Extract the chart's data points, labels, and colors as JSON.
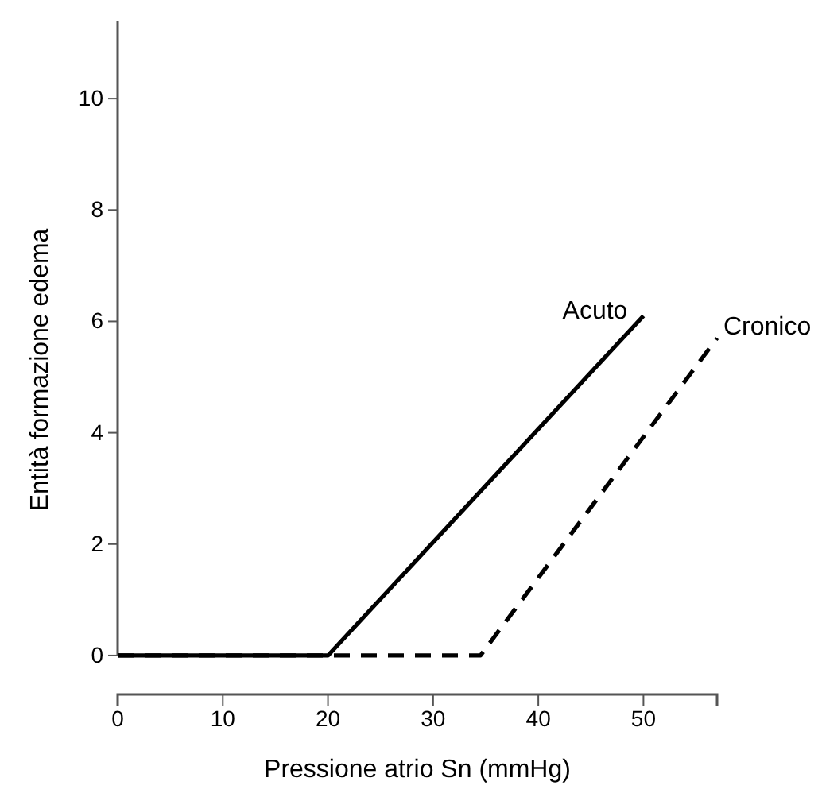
{
  "chart_data": {
    "type": "line",
    "xlabel": "Pressione atrio Sn (mmHg)",
    "ylabel": "Entità formazione edema",
    "xlim": [
      0,
      57
    ],
    "xticks": [
      0,
      10,
      20,
      30,
      40,
      50
    ],
    "ylim": [
      -0.7,
      11.4
    ],
    "yticks": [
      0,
      2,
      4,
      6,
      8,
      10
    ],
    "legend": false,
    "grid": false,
    "marker": "none",
    "series": [
      {
        "name": "Acuto",
        "color": "#000000",
        "line_style": "solid",
        "x": [
          0,
          20,
          50
        ],
        "values": [
          0,
          0,
          6.1
        ]
      },
      {
        "name": "Cronico",
        "color": "#000000",
        "line_style": "dashed",
        "x": [
          0,
          34.5,
          57
        ],
        "values": [
          0,
          0,
          5.7
        ]
      }
    ]
  }
}
